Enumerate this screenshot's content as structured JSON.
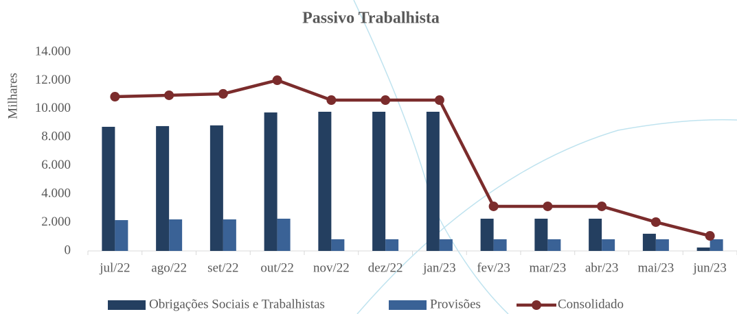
{
  "chart_data": {
    "type": "bar_line",
    "title": "Passivo Trabalhista",
    "y_label": "Milhares",
    "categories": [
      "jul/22",
      "ago/22",
      "set/22",
      "out/22",
      "nov/22",
      "dez/22",
      "jan/23",
      "fev/23",
      "mar/23",
      "abr/23",
      "mai/23",
      "jun/23"
    ],
    "series": [
      {
        "name": "Obrigações Sociais e Trabalhistas",
        "type": "bar",
        "color": "#243f60",
        "values": [
          8740,
          8790,
          8840,
          9750,
          9800,
          9800,
          9800,
          2270,
          2270,
          2270,
          1210,
          240
        ]
      },
      {
        "name": "Provisões",
        "type": "bar",
        "color": "#3a6296",
        "values": [
          2170,
          2220,
          2220,
          2270,
          820,
          820,
          820,
          820,
          820,
          820,
          820,
          820
        ]
      },
      {
        "name": "Consolidado",
        "type": "line",
        "color": "#7b2c2c",
        "values": [
          10860,
          10960,
          11060,
          12020,
          10620,
          10620,
          10620,
          3140,
          3140,
          3140,
          2030,
          1060
        ]
      }
    ],
    "ylim": [
      0,
      14000
    ],
    "yticks": [
      0,
      {
        "value": 2000,
        "label": "2.000"
      },
      {
        "value": 4000,
        "label": "4.000"
      },
      {
        "value": 6000,
        "label": "6.000"
      },
      {
        "value": 8000,
        "label": "8.000"
      },
      {
        "value": 10000,
        "label": "10.000"
      },
      {
        "value": 12000,
        "label": "12.000"
      },
      {
        "value": 14000,
        "label": "14.000"
      }
    ],
    "grid": false,
    "legend": "bottom"
  }
}
